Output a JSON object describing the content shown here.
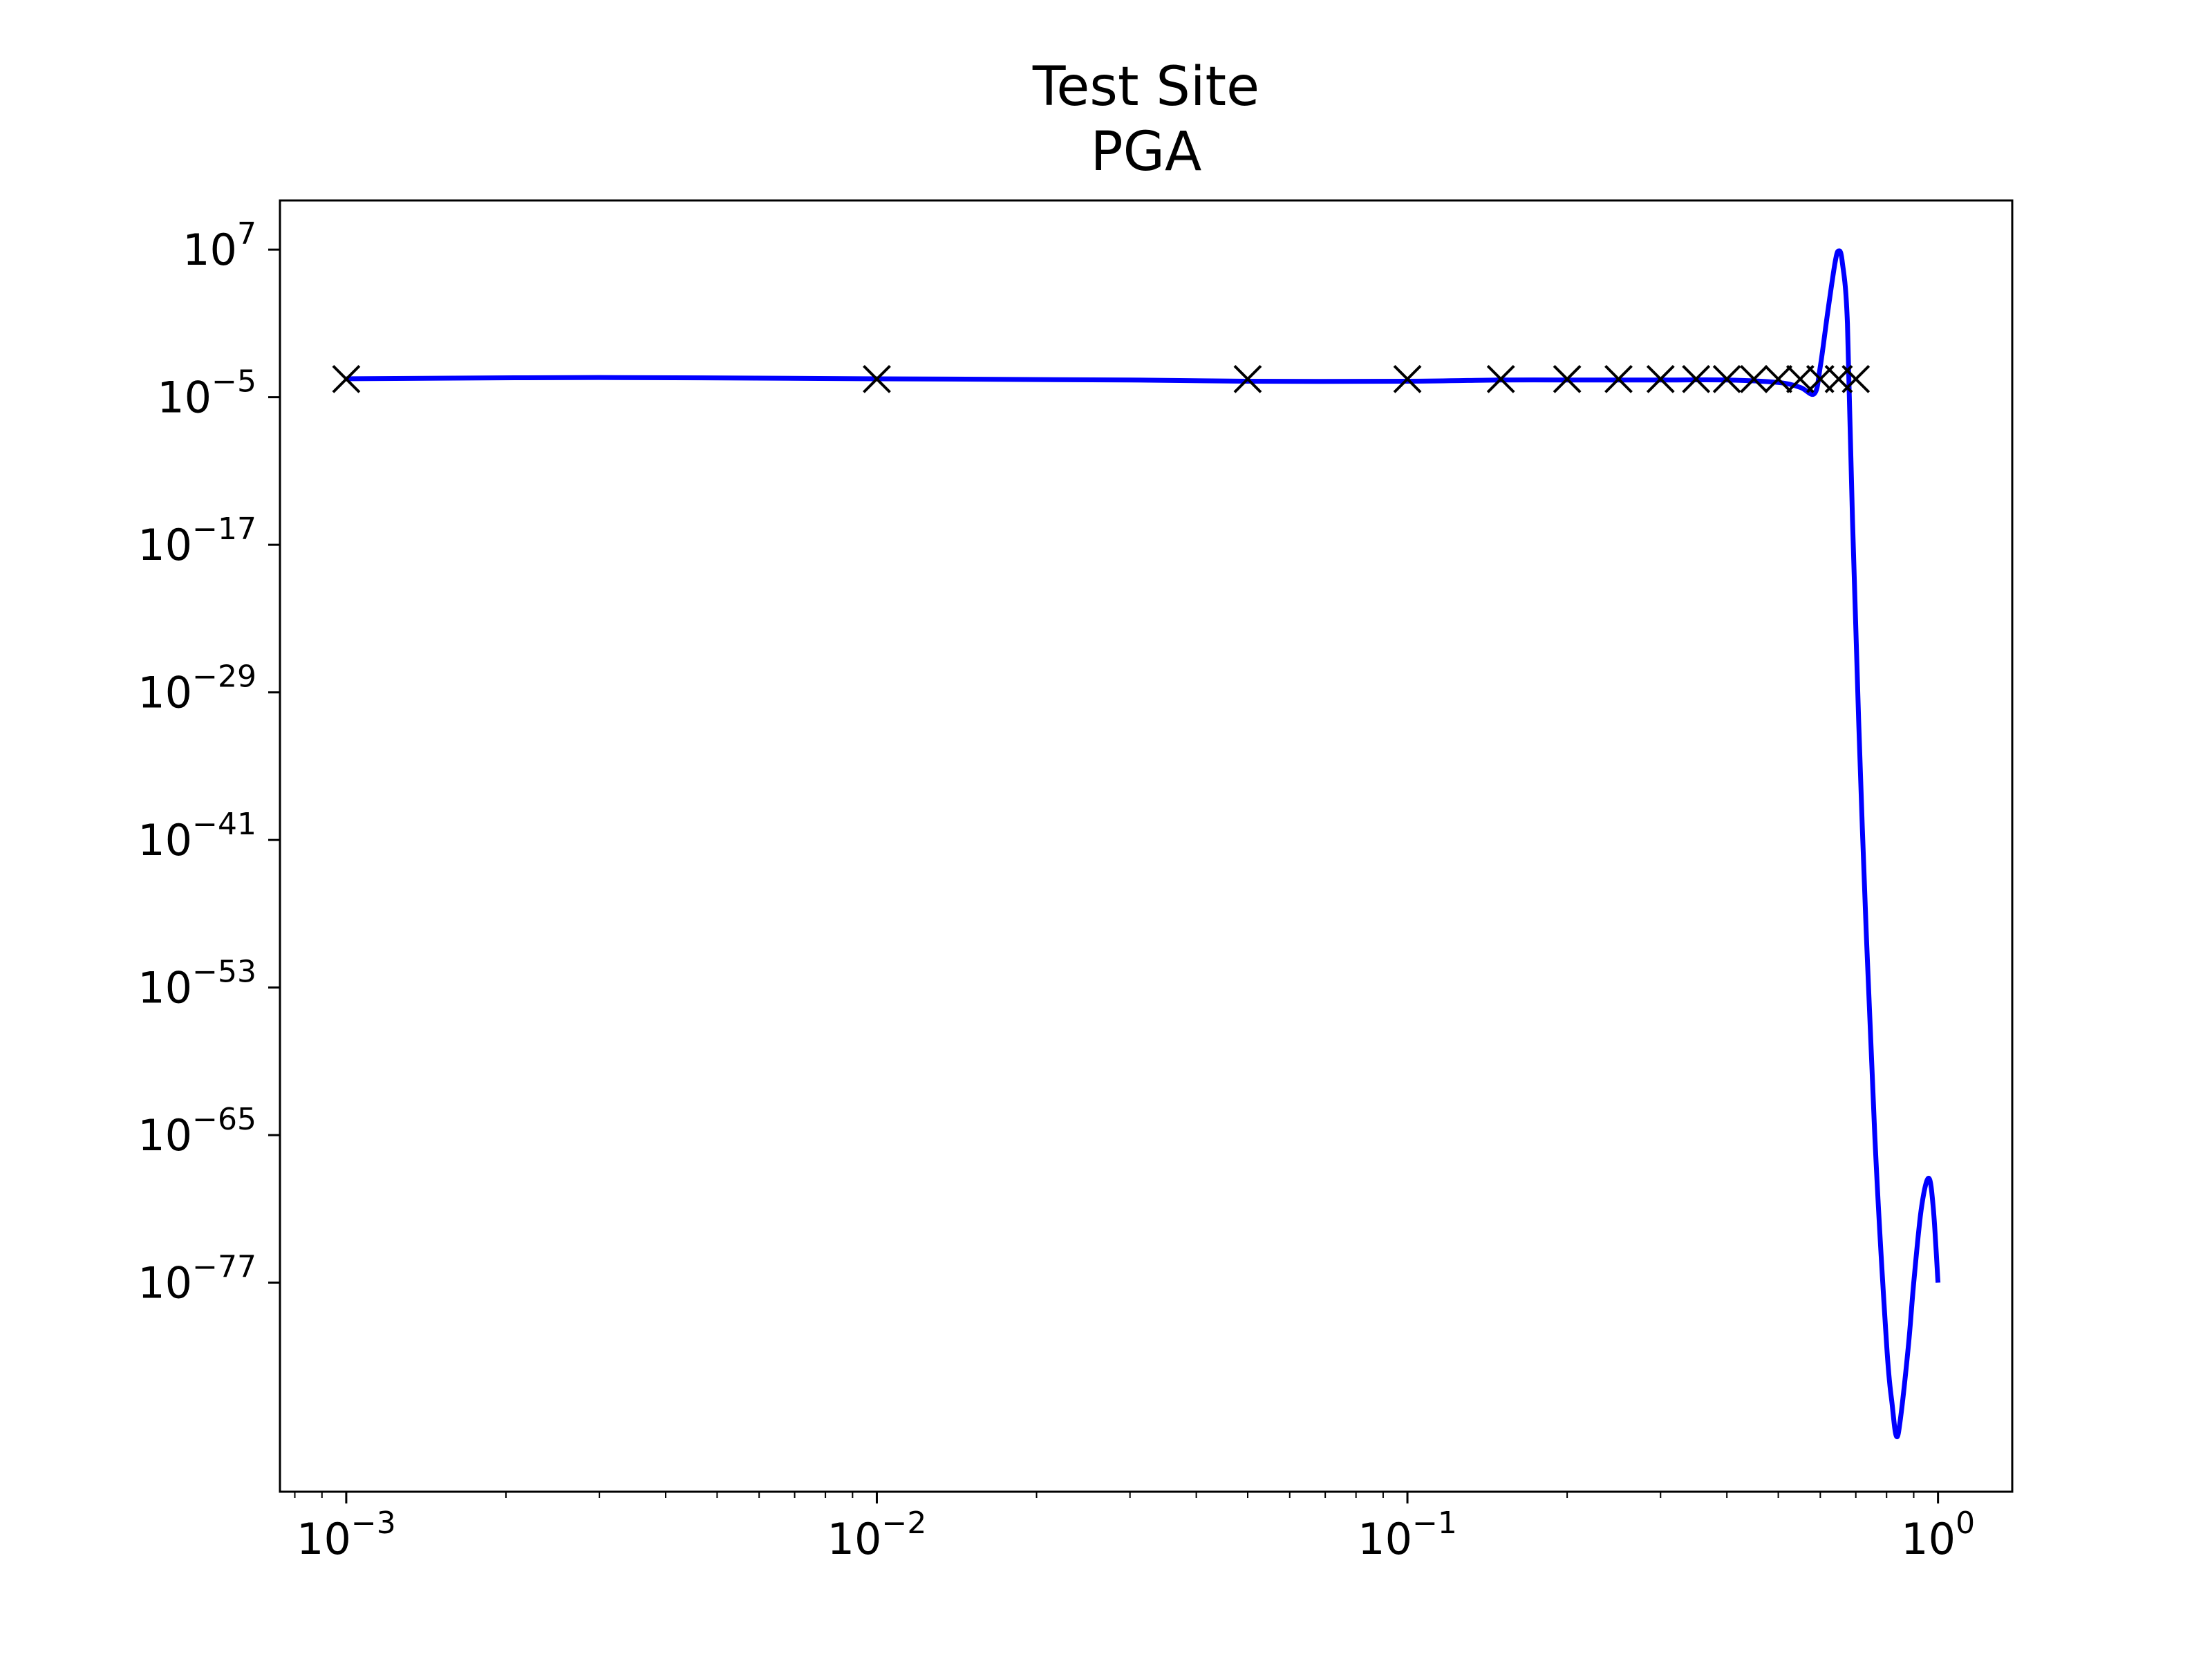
{
  "chart_data": {
    "type": "line",
    "title": "Test Site",
    "subtitle": "PGA",
    "xlabel": "",
    "ylabel": "",
    "xscale": "log",
    "yscale": "log",
    "xlim": [
      0.00075,
      1.38
    ],
    "ylim": [
      1e-94,
      100000000000.0
    ],
    "grid": false,
    "xticks": [
      {
        "value": 0.001,
        "base": "10",
        "exp": "−3"
      },
      {
        "value": 0.01,
        "base": "10",
        "exp": "−2"
      },
      {
        "value": 0.1,
        "base": "10",
        "exp": "−1"
      },
      {
        "value": 1,
        "base": "10",
        "exp": "0"
      }
    ],
    "yticks": [
      {
        "value": 7,
        "base": "10",
        "exp": "7"
      },
      {
        "value": -5,
        "base": "10",
        "exp": "−5"
      },
      {
        "value": -17,
        "base": "10",
        "exp": "−17"
      },
      {
        "value": -29,
        "base": "10",
        "exp": "−29"
      },
      {
        "value": -41,
        "base": "10",
        "exp": "−41"
      },
      {
        "value": -53,
        "base": "10",
        "exp": "−53"
      },
      {
        "value": -65,
        "base": "10",
        "exp": "−65"
      },
      {
        "value": -77,
        "base": "10",
        "exp": "−77"
      }
    ],
    "colors": {
      "line": "#0000ff",
      "markers": "#000000"
    },
    "series": [
      {
        "kind": "markers",
        "marker": "x",
        "x": [
          0.001,
          0.01,
          0.05,
          0.1,
          0.15,
          0.2,
          0.25,
          0.3,
          0.35,
          0.4,
          0.45,
          0.5,
          0.55,
          0.6,
          0.65,
          0.7
        ],
        "y": [
          0.0003,
          0.0003,
          0.0003,
          0.0003,
          0.0003,
          0.0003,
          0.0003,
          0.0003,
          0.0003,
          0.0003,
          0.0003,
          0.0003,
          0.0003,
          0.0003,
          0.0003,
          0.0003
        ]
      },
      {
        "kind": "line",
        "x": [
          0.001,
          0.003,
          0.01,
          0.03,
          0.05,
          0.1,
          0.15,
          0.2,
          0.3,
          0.4,
          0.5,
          0.55,
          0.585,
          0.6,
          0.62,
          0.64,
          0.65,
          0.66,
          0.675,
          0.69,
          0.72,
          0.76,
          0.8,
          0.82,
          0.835,
          0.85,
          0.88,
          0.9,
          0.93,
          0.96,
          0.98,
          1.0
        ],
        "log10_y": [
          -3.5,
          -3.4,
          -3.5,
          -3.6,
          -3.7,
          -3.7,
          -3.6,
          -3.6,
          -3.6,
          -3.6,
          -3.8,
          -4.2,
          -4.7,
          -2.5,
          2.0,
          6.0,
          6.9,
          6.0,
          1.0,
          -15.0,
          -40.0,
          -65.0,
          -82.0,
          -87.0,
          -89.5,
          -88.0,
          -82.0,
          -77.0,
          -71.0,
          -68.5,
          -71.0,
          -77.0
        ]
      }
    ]
  }
}
